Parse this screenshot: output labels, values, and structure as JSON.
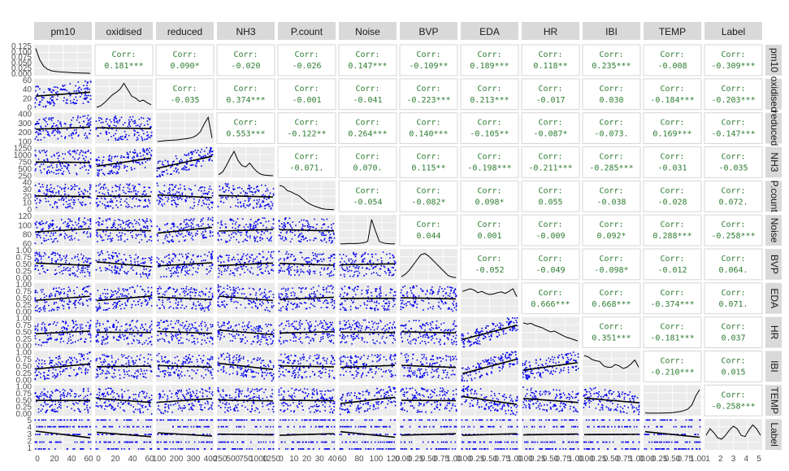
{
  "chart_data": {
    "type": "scatter",
    "title": "",
    "variables": [
      "pm10",
      "oxidised",
      "reduced",
      "NH3",
      "P.count",
      "Noise",
      "BVP",
      "EDA",
      "HR",
      "IBI",
      "TEMP",
      "Label"
    ],
    "row_strip_labels": [
      "pm10",
      "oxidised",
      "reduced",
      "NH3",
      "P.count",
      "Noise",
      "BVP",
      "EDA",
      "HR",
      "IBI",
      "TEMP",
      "Label"
    ],
    "panels": {
      "upper": "correlation text",
      "diagonal": "density curve",
      "lower": "scatter with linear fit"
    },
    "corr_prefix": "Corr:",
    "correlations": [
      [
        "pm10",
        "oxidised",
        "0.181***"
      ],
      [
        "pm10",
        "reduced",
        "0.090*"
      ],
      [
        "pm10",
        "NH3",
        "-0.020"
      ],
      [
        "pm10",
        "P.count",
        "-0.026"
      ],
      [
        "pm10",
        "Noise",
        "0.147***"
      ],
      [
        "pm10",
        "BVP",
        "-0.109**"
      ],
      [
        "pm10",
        "EDA",
        "0.189***"
      ],
      [
        "pm10",
        "HR",
        "0.118**"
      ],
      [
        "pm10",
        "IBI",
        "0.235***"
      ],
      [
        "pm10",
        "TEMP",
        "-0.008"
      ],
      [
        "pm10",
        "Label",
        "-0.309***"
      ],
      [
        "oxidised",
        "reduced",
        "-0.035"
      ],
      [
        "oxidised",
        "NH3",
        "0.374***"
      ],
      [
        "oxidised",
        "P.count",
        "-0.001"
      ],
      [
        "oxidised",
        "Noise",
        "-0.041"
      ],
      [
        "oxidised",
        "BVP",
        "-0.223***"
      ],
      [
        "oxidised",
        "EDA",
        "0.213***"
      ],
      [
        "oxidised",
        "HR",
        "-0.017"
      ],
      [
        "oxidised",
        "IBI",
        "0.030"
      ],
      [
        "oxidised",
        "TEMP",
        "-0.184***"
      ],
      [
        "oxidised",
        "Label",
        "-0.203***"
      ],
      [
        "reduced",
        "NH3",
        "0.553***"
      ],
      [
        "reduced",
        "P.count",
        "-0.122**"
      ],
      [
        "reduced",
        "Noise",
        "0.264***"
      ],
      [
        "reduced",
        "BVP",
        "0.140***"
      ],
      [
        "reduced",
        "EDA",
        "-0.105**"
      ],
      [
        "reduced",
        "HR",
        "-0.087*"
      ],
      [
        "reduced",
        "IBI",
        "-0.073."
      ],
      [
        "reduced",
        "TEMP",
        "0.169***"
      ],
      [
        "reduced",
        "Label",
        "-0.147***"
      ],
      [
        "NH3",
        "P.count",
        "-0.071."
      ],
      [
        "NH3",
        "Noise",
        "0.070."
      ],
      [
        "NH3",
        "BVP",
        "0.115**"
      ],
      [
        "NH3",
        "EDA",
        "-0.198***"
      ],
      [
        "NH3",
        "HR",
        "-0.211***"
      ],
      [
        "NH3",
        "IBI",
        "-0.285***"
      ],
      [
        "NH3",
        "TEMP",
        "-0.031"
      ],
      [
        "NH3",
        "Label",
        "-0.035"
      ],
      [
        "P.count",
        "Noise",
        "-0.054"
      ],
      [
        "P.count",
        "BVP",
        "-0.082*"
      ],
      [
        "P.count",
        "EDA",
        "0.098*"
      ],
      [
        "P.count",
        "HR",
        "0.055"
      ],
      [
        "P.count",
        "IBI",
        "-0.038"
      ],
      [
        "P.count",
        "TEMP",
        "-0.028"
      ],
      [
        "P.count",
        "Label",
        "0.072."
      ],
      [
        "Noise",
        "BVP",
        "0.044"
      ],
      [
        "Noise",
        "EDA",
        "0.001"
      ],
      [
        "Noise",
        "HR",
        "-0.009"
      ],
      [
        "Noise",
        "IBI",
        "0.092*"
      ],
      [
        "Noise",
        "TEMP",
        "0.288***"
      ],
      [
        "Noise",
        "Label",
        "-0.258***"
      ],
      [
        "BVP",
        "EDA",
        "-0.052"
      ],
      [
        "BVP",
        "HR",
        "-0.049"
      ],
      [
        "BVP",
        "IBI",
        "-0.098*"
      ],
      [
        "BVP",
        "TEMP",
        "-0.012"
      ],
      [
        "BVP",
        "Label",
        "0.064."
      ],
      [
        "EDA",
        "HR",
        "0.666***"
      ],
      [
        "EDA",
        "IBI",
        "0.668***"
      ],
      [
        "EDA",
        "TEMP",
        "-0.374***"
      ],
      [
        "EDA",
        "Label",
        "0.071."
      ],
      [
        "HR",
        "IBI",
        "0.351***"
      ],
      [
        "HR",
        "TEMP",
        "-0.181***"
      ],
      [
        "HR",
        "Label",
        "0.037"
      ],
      [
        "IBI",
        "TEMP",
        "-0.210***"
      ],
      [
        "IBI",
        "Label",
        "0.015"
      ],
      [
        "TEMP",
        "Label",
        "-0.258***"
      ]
    ],
    "x_ticks": [
      [
        "0",
        "20",
        "40",
        "60"
      ],
      [
        "0",
        "20",
        "40",
        "60"
      ],
      [
        "100",
        "200",
        "300",
        "400"
      ],
      [
        "250",
        "500",
        "750",
        "1000",
        "1250"
      ],
      [
        "0",
        "10",
        "20",
        "30",
        "40"
      ],
      [
        "60",
        "80",
        "100",
        "120"
      ],
      [
        "0.00",
        "0.25",
        "0.50",
        "0.75",
        "1.00"
      ],
      [
        "0.00",
        "0.25",
        "0.50",
        "0.75",
        "1.00"
      ],
      [
        "0.00",
        "0.25",
        "0.50",
        "0.75",
        "1.00"
      ],
      [
        "0.00",
        "0.25",
        "0.50",
        "0.75",
        "1.00"
      ],
      [
        "0.00",
        "0.25",
        "0.50",
        "0.75",
        "1.00"
      ],
      [
        "1",
        "2",
        "3",
        "4",
        "5"
      ]
    ],
    "y_ticks": [
      [
        "0.125",
        "0.100",
        "0.075",
        "0.050",
        "0.025",
        "0.000"
      ],
      [
        "60",
        "40",
        "20",
        "0"
      ],
      [
        "400",
        "300",
        "200",
        "100"
      ],
      [
        "1250",
        "1000",
        "750",
        "500",
        "250"
      ],
      [
        "40",
        "30",
        "20",
        "10",
        "0"
      ],
      [
        "120",
        "100",
        "80",
        "60"
      ],
      [
        "1.00",
        "0.75",
        "0.50",
        "0.25",
        "0.00"
      ],
      [
        "1.00",
        "0.75",
        "0.50",
        "0.25",
        "0.00"
      ],
      [
        "1.00",
        "0.75",
        "0.50",
        "0.25",
        "0.00"
      ],
      [
        "1.00",
        "0.75",
        "0.50",
        "0.25",
        "0.00"
      ],
      [
        "1.00",
        "0.75",
        "0.50",
        "0.25",
        "0.00"
      ],
      [
        "5",
        "4",
        "3",
        "2",
        "1"
      ]
    ],
    "densities": [
      [
        0.98,
        0.55,
        0.3,
        0.18,
        0.12,
        0.1,
        0.08,
        0.07,
        0.06,
        0.05,
        0.04,
        0.04,
        0.03,
        0.03,
        0.02
      ],
      [
        0.02,
        0.08,
        0.2,
        0.35,
        0.5,
        0.6,
        0.72,
        0.95,
        0.7,
        0.45,
        0.38,
        0.25,
        0.3,
        0.2,
        0.12
      ],
      [
        0.02,
        0.03,
        0.05,
        0.06,
        0.07,
        0.08,
        0.1,
        0.12,
        0.14,
        0.18,
        0.25,
        0.4,
        0.7,
        0.95,
        0.15
      ],
      [
        0.05,
        0.15,
        0.4,
        0.7,
        0.95,
        0.6,
        0.4,
        0.35,
        0.5,
        0.3,
        0.15,
        0.06,
        0.03,
        0.02,
        0.01
      ],
      [
        0.95,
        0.9,
        0.75,
        0.7,
        0.62,
        0.55,
        0.42,
        0.3,
        0.22,
        0.15,
        0.1,
        0.05,
        0.03,
        0.02,
        0.01
      ],
      [
        0.01,
        0.01,
        0.02,
        0.02,
        0.02,
        0.03,
        0.05,
        0.1,
        0.95,
        0.5,
        0.1,
        0.04,
        0.02,
        0.01,
        0.01
      ],
      [
        0.05,
        0.15,
        0.3,
        0.5,
        0.7,
        0.9,
        0.95,
        0.85,
        0.7,
        0.55,
        0.4,
        0.25,
        0.1,
        0.04,
        0.02
      ],
      [
        0.8,
        0.85,
        0.9,
        0.85,
        0.75,
        0.8,
        0.72,
        0.68,
        0.7,
        0.75,
        0.78,
        0.72,
        0.8,
        0.9,
        0.6
      ],
      [
        0.9,
        0.85,
        0.88,
        0.8,
        0.75,
        0.7,
        0.62,
        0.55,
        0.58,
        0.5,
        0.42,
        0.35,
        0.3,
        0.25,
        0.2
      ],
      [
        0.95,
        0.9,
        0.8,
        0.75,
        0.72,
        0.55,
        0.5,
        0.5,
        0.6,
        0.55,
        0.45,
        0.5,
        0.62,
        0.78,
        0.5
      ],
      [
        0.05,
        0.04,
        0.04,
        0.04,
        0.04,
        0.05,
        0.05,
        0.06,
        0.08,
        0.1,
        0.14,
        0.2,
        0.35,
        0.7,
        0.95
      ],
      [
        0.5,
        0.75,
        0.6,
        0.4,
        0.35,
        0.5,
        0.7,
        0.85,
        0.75,
        0.5,
        0.45,
        0.7,
        0.9,
        0.75,
        0.5
      ]
    ],
    "colors": {
      "points": "#0000ee",
      "fit": "#000000",
      "corr_text": "#2e7d32",
      "strip_bg": "#d9d9d9",
      "panel_bg": "#ebebeb"
    }
  }
}
